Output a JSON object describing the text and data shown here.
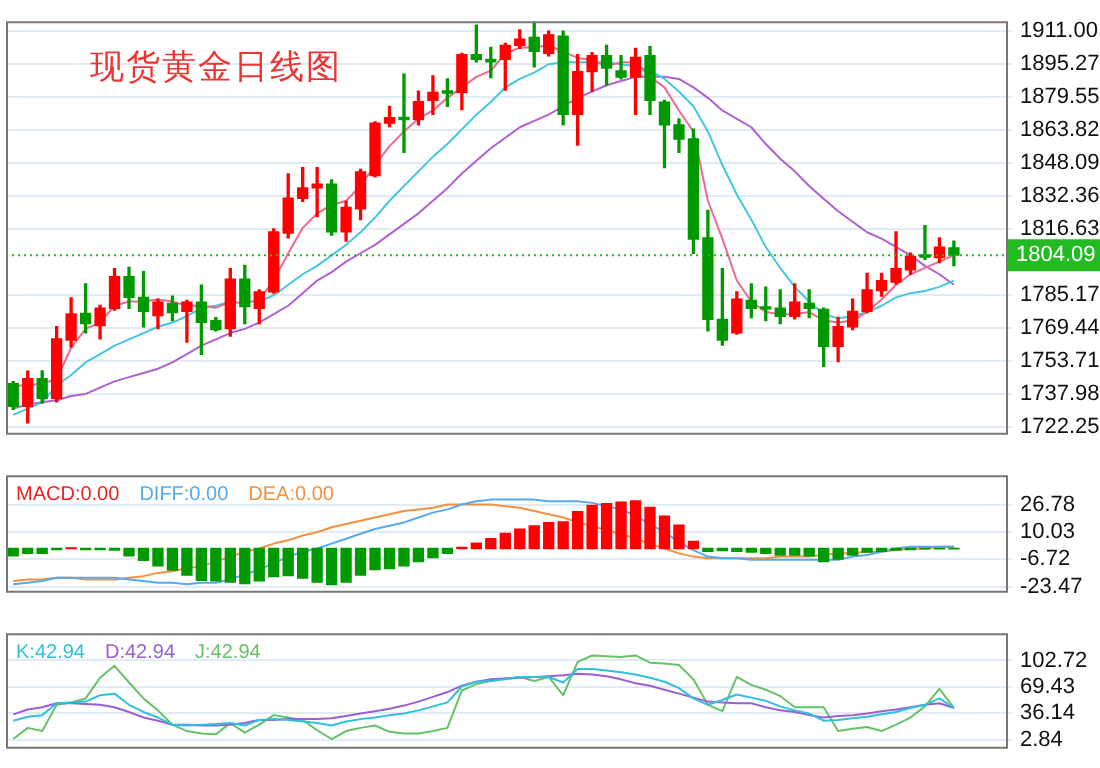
{
  "chart_data": [
    {
      "type": "candlestick",
      "title": "现货黄金日线图",
      "categories": [
        null,
        null,
        null,
        null,
        null,
        null,
        null,
        null,
        null,
        null,
        null,
        null,
        null,
        null,
        null,
        null,
        null,
        null,
        null,
        null,
        null,
        null,
        null,
        null,
        null,
        null,
        null,
        null,
        null,
        null,
        null,
        null,
        null,
        null,
        null,
        null,
        null,
        null,
        null,
        null,
        null,
        null,
        null,
        null,
        null,
        null,
        null,
        null,
        null,
        null,
        null,
        null,
        null,
        null,
        null,
        null,
        null,
        null,
        null,
        null,
        null,
        null,
        null,
        null,
        null,
        null
      ],
      "ohlc": [
        [
          1742.9,
          1743.8,
          1730.7,
          1732.1
        ],
        [
          1732.1,
          1748.8,
          1724.3,
          1745.3
        ],
        [
          1745.3,
          1749.0,
          1733.6,
          1735.9
        ],
        [
          1735.9,
          1770.0,
          1734.2,
          1764.2
        ],
        [
          1763.6,
          1783.7,
          1760.4,
          1776.1
        ],
        [
          1776.4,
          1790.4,
          1767.1,
          1771.5
        ],
        [
          1770.6,
          1780.2,
          1764.2,
          1778.8
        ],
        [
          1778.8,
          1797.7,
          1777.9,
          1793.9
        ],
        [
          1793.9,
          1798.3,
          1778.8,
          1784.0
        ],
        [
          1784.0,
          1796.2,
          1770.0,
          1777.3
        ],
        [
          1775.3,
          1783.1,
          1769.1,
          1781.7
        ],
        [
          1781.1,
          1784.6,
          1772.9,
          1776.7
        ],
        [
          1777.3,
          1782.5,
          1762.7,
          1781.7
        ],
        [
          1781.7,
          1789.8,
          1756.9,
          1772.1
        ],
        [
          1772.9,
          1774.3,
          1768.0,
          1768.6
        ],
        [
          1769.1,
          1797.7,
          1765.6,
          1792.7
        ],
        [
          1792.7,
          1799.2,
          1771.5,
          1779.6
        ],
        [
          1778.8,
          1787.5,
          1771.5,
          1786.6
        ],
        [
          1786.6,
          1816.6,
          1786.0,
          1815.2
        ],
        [
          1814.6,
          1842.8,
          1812.3,
          1831.2
        ],
        [
          1831.2,
          1845.8,
          1829.7,
          1836.1
        ],
        [
          1836.1,
          1845.8,
          1822.4,
          1837.9
        ],
        [
          1837.9,
          1839.9,
          1813.7,
          1815.2
        ],
        [
          1815.2,
          1829.7,
          1810.8,
          1826.8
        ],
        [
          1826.2,
          1844.9,
          1821.0,
          1843.7
        ],
        [
          1842.0,
          1867.6,
          1841.4,
          1867.0
        ],
        [
          1867.0,
          1874.9,
          1865.3,
          1869.6
        ],
        [
          1869.2,
          1890.3,
          1853.0,
          1868.7
        ],
        [
          1868.7,
          1882.2,
          1866.1,
          1877.2
        ],
        [
          1877.8,
          1889.4,
          1871.1,
          1881.6
        ],
        [
          1882.2,
          1888.0,
          1874.9,
          1881.3
        ],
        [
          1881.6,
          1900.2,
          1873.4,
          1899.6
        ],
        [
          1899.6,
          1913.6,
          1896.1,
          1897.3
        ],
        [
          1897.3,
          1903.0,
          1888.6,
          1896.1
        ],
        [
          1897.3,
          1904.9,
          1882.7,
          1904.0
        ],
        [
          1904.0,
          1911.3,
          1902.6,
          1906.9
        ],
        [
          1907.8,
          1915.0,
          1893.8,
          1901.1
        ],
        [
          1900.2,
          1910.7,
          1899.0,
          1909.0
        ],
        [
          1908.4,
          1910.7,
          1866.1,
          1871.1
        ],
        [
          1871.1,
          1899.6,
          1856.5,
          1891.5
        ],
        [
          1891.5,
          1900.5,
          1882.2,
          1899.1
        ],
        [
          1899.1,
          1904.0,
          1885.1,
          1893.2
        ],
        [
          1891.8,
          1899.1,
          1888.0,
          1888.9
        ],
        [
          1888.9,
          1902.6,
          1871.1,
          1898.2
        ],
        [
          1899.1,
          1903.4,
          1871.1,
          1877.8
        ],
        [
          1876.9,
          1877.8,
          1845.8,
          1866.1
        ],
        [
          1866.1,
          1869.0,
          1853.0,
          1859.4
        ],
        [
          1859.4,
          1864.1,
          1805.0,
          1811.7
        ],
        [
          1812.3,
          1825.4,
          1768.0,
          1773.5
        ],
        [
          1773.5,
          1797.7,
          1761.3,
          1763.6
        ],
        [
          1767.1,
          1786.6,
          1766.5,
          1783.1
        ],
        [
          1782.5,
          1790.4,
          1774.4,
          1778.8
        ],
        [
          1779.0,
          1788.9,
          1772.9,
          1778.5
        ],
        [
          1778.8,
          1787.5,
          1771.5,
          1775.0
        ],
        [
          1775.0,
          1790.4,
          1773.8,
          1781.7
        ],
        [
          1781.1,
          1787.5,
          1774.4,
          1778.8
        ],
        [
          1778.2,
          1778.8,
          1751.1,
          1760.7
        ],
        [
          1760.7,
          1774.4,
          1753.4,
          1770.0
        ],
        [
          1770.0,
          1783.1,
          1768.6,
          1777.3
        ],
        [
          1777.3,
          1795.4,
          1776.7,
          1787.5
        ],
        [
          1787.2,
          1795.4,
          1784.6,
          1791.9
        ],
        [
          1791.3,
          1815.2,
          1790.4,
          1797.7
        ],
        [
          1797.1,
          1805.0,
          1795.0,
          1803.5
        ],
        [
          1803.8,
          1818.1,
          1802.1,
          1803.2
        ],
        [
          1802.9,
          1812.3,
          1800.6,
          1807.9
        ],
        [
          1807.6,
          1810.8,
          1799.1,
          1804.09
        ]
      ],
      "colors": [
        "#009900",
        "#ff0000",
        "#009900",
        "#ff0000",
        "#ff0000",
        "#009900",
        "#ff0000",
        "#ff0000",
        "#009900",
        "#009900",
        "#ff0000",
        "#009900",
        "#ff0000",
        "#009900",
        "#009900",
        "#ff0000",
        "#009900",
        "#ff0000",
        "#ff0000",
        "#ff0000",
        "#ff0000",
        "#ff0000",
        "#009900",
        "#ff0000",
        "#ff0000",
        "#ff0000",
        "#ff0000",
        "#009900",
        "#ff0000",
        "#ff0000",
        "#009900",
        "#ff0000",
        "#009900",
        "#009900",
        "#ff0000",
        "#ff0000",
        "#009900",
        "#ff0000",
        "#009900",
        "#ff0000",
        "#ff0000",
        "#009900",
        "#009900",
        "#ff0000",
        "#009900",
        "#009900",
        "#009900",
        "#009900",
        "#009900",
        "#009900",
        "#ff0000",
        "#009900",
        "#009900",
        "#009900",
        "#ff0000",
        "#009900",
        "#009900",
        "#ff0000",
        "#ff0000",
        "#ff0000",
        "#ff0000",
        "#ff0000",
        "#ff0000",
        "#009900",
        "#ff0000",
        "#009900"
      ],
      "series": [
        {
          "type": "line",
          "color": "#f06890",
          "values": [
            1742,
            1742,
            1743,
            1745,
            1760,
            1769,
            1772,
            1780,
            1782,
            1782,
            1783,
            1782,
            1780,
            1780,
            1779,
            1782,
            1781,
            1783,
            1792,
            1805,
            1817,
            1824,
            1828,
            1830,
            1837,
            1847,
            1856,
            1863,
            1869,
            1873,
            1879,
            1884,
            1889,
            1892,
            1900,
            1903,
            1903,
            1904,
            1901,
            1898,
            1897,
            1894,
            1896,
            1896,
            1889,
            1884,
            1873,
            1863,
            1830,
            1812,
            1792,
            1782,
            1777,
            1776,
            1776,
            1777,
            1773,
            1772,
            1773,
            1777,
            1783,
            1790,
            1795,
            1798,
            1801,
            1804
          ]
        },
        {
          "type": "line",
          "color": "#40c8e0",
          "values": [
            1728,
            1731,
            1734,
            1742,
            1747,
            1753,
            1757,
            1761,
            1764,
            1767,
            1770,
            1772,
            1775,
            1779,
            1780,
            1782,
            null,
            1782,
            1785,
            1790,
            1795,
            1799,
            1804,
            1809,
            1815,
            1822,
            1830,
            1837,
            1844,
            1851,
            1857,
            1864,
            1871,
            1877,
            1884,
            1888,
            1891,
            1895,
            1896,
            1896,
            1896,
            1896,
            1895,
            1894,
            1892,
            1888,
            1882,
            1875,
            1863,
            1847,
            1833,
            1821,
            1808,
            1798,
            1789,
            1782,
            1776,
            1774,
            1775,
            1777,
            1780,
            1784,
            1786,
            1787,
            1789,
            1792
          ]
        },
        {
          "type": "line",
          "color": "#b060d0",
          "values": [
            1731,
            1733,
            1734,
            1735,
            1737,
            1738,
            1741,
            1744,
            1746,
            1748,
            1750,
            1753,
            1757,
            1761,
            1764,
            1767,
            1769,
            1772,
            1776,
            1780,
            1786,
            1792,
            1796,
            1801,
            1805,
            1809,
            1814,
            1819,
            1824,
            1830,
            1836,
            1843,
            1849,
            1855,
            1860,
            1865,
            1868,
            1871,
            1875,
            1879,
            1882,
            1885,
            1887,
            1889,
            1889,
            1889,
            1888,
            1884,
            1879,
            1873,
            1869,
            1865,
            1857,
            1850,
            1844,
            1837,
            1831,
            1825,
            1820,
            1815,
            1812,
            1808,
            1804,
            1799,
            1795,
            1790
          ]
        }
      ],
      "ylim": [
        1719.5,
        1915.5
      ],
      "yticks": [
        {
          "value": 1911,
          "label": "1911.00"
        },
        1895.27,
        1879.55,
        1863.82,
        1848.09,
        1832.36,
        1816.63,
        1785.17,
        1769.44,
        1753.71,
        1737.98,
        1722.25
      ],
      "ref_lines": [
        {
          "axis": "y",
          "value": 1804.09,
          "label": "1804.09",
          "color": "#22bb22",
          "line_style": "dotted"
        }
      ],
      "grid": "y",
      "tick_labels": "y"
    },
    {
      "type": "bar",
      "categories": [
        null,
        null,
        null,
        null,
        null,
        null,
        null,
        null,
        null,
        null,
        null,
        null,
        null,
        null,
        null,
        null,
        null,
        null,
        null,
        null,
        null,
        null,
        null,
        null,
        null,
        null,
        null,
        null,
        null,
        null,
        null,
        null,
        null,
        null,
        null,
        null,
        null,
        null,
        null,
        null,
        null,
        null,
        null,
        null,
        null,
        null,
        null,
        null,
        null,
        null,
        null,
        null,
        null,
        null,
        null,
        null,
        null,
        null,
        null,
        null,
        null,
        null,
        null,
        null,
        null,
        null
      ],
      "series": [
        {
          "name": "MACD:0.00",
          "type": "bar",
          "color": "#ee2222",
          "values": [
            -4.6,
            -3.0,
            -3.0,
            -0.7,
            0.3,
            -0.7,
            -0.7,
            -1.0,
            -4.6,
            -7.3,
            -10.6,
            -13.3,
            -16.3,
            -19.6,
            -19.9,
            -20.6,
            -21.6,
            -19.9,
            -17.3,
            -16.6,
            -18.2,
            -20.6,
            -22.2,
            -20.6,
            -16.3,
            -12.9,
            -12.3,
            -10.6,
            -8.0,
            -5.6,
            -3.0,
            0.7,
            3.3,
            6.0,
            9.3,
            11.9,
            13.9,
            15.9,
            16.3,
            22.6,
            26.5,
            27.5,
            28.5,
            29.2,
            25.2,
            19.9,
            14.3,
            4.3,
            -1.7,
            -1.3,
            -1.7,
            -2.3,
            -3.0,
            -4.0,
            -4.0,
            -4.6,
            -8.0,
            -6.6,
            -4.0,
            -2.3,
            -1.7,
            -1.0,
            -0.7,
            -0.3,
            -0.3,
            -0.3
          ],
          "colors": [
            "#009900",
            "#009900",
            "#009900",
            "#009900",
            "#ff0000",
            "#009900",
            "#009900",
            "#009900",
            "#009900",
            "#009900",
            "#009900",
            "#009900",
            "#009900",
            "#009900",
            "#009900",
            "#009900",
            "#009900",
            "#009900",
            "#009900",
            "#009900",
            "#009900",
            "#009900",
            "#009900",
            "#009900",
            "#009900",
            "#009900",
            "#009900",
            "#009900",
            "#009900",
            "#009900",
            "#009900",
            "#ff0000",
            "#ff0000",
            "#ff0000",
            "#ff0000",
            "#ff0000",
            "#ff0000",
            "#ff0000",
            "#ff0000",
            "#ff0000",
            "#ff0000",
            "#ff0000",
            "#ff0000",
            "#ff0000",
            "#ff0000",
            "#ff0000",
            "#ff0000",
            "#ff0000",
            "#009900",
            "#009900",
            "#009900",
            "#009900",
            "#009900",
            "#009900",
            "#009900",
            "#009900",
            "#009900",
            "#009900",
            "#009900",
            "#009900",
            "#009900",
            "#009900",
            "#009900",
            "#009900",
            "#009900",
            "#009900"
          ]
        },
        {
          "name": "DIFF:0.00",
          "type": "line",
          "color": "#55aaee",
          "values": [
            -22,
            -21,
            -20,
            -18,
            -18,
            -18,
            -18,
            -18,
            -19,
            -20,
            -21,
            -21,
            -22,
            -21,
            -21,
            -19,
            -16,
            -13,
            -9,
            -5,
            -2,
            0,
            3,
            6,
            9,
            12,
            14,
            16,
            19,
            22,
            24,
            27,
            29,
            30,
            30,
            30,
            30,
            29,
            29,
            29,
            28,
            26,
            24,
            20,
            15,
            10,
            4,
            -1,
            -5,
            -6,
            -6,
            -7,
            -7,
            -7,
            -7,
            -7,
            -7,
            -7,
            -5,
            -4,
            -2,
            0,
            1,
            1,
            1,
            1
          ]
        },
        {
          "name": "DEA:0.00",
          "type": "line",
          "color": "#f59040",
          "values": [
            -20,
            -19,
            -19,
            -18,
            -18,
            -19,
            -19,
            -19,
            -18,
            -17,
            -15,
            -14,
            -12,
            -11,
            -8,
            -5,
            -2,
            0,
            3,
            5,
            8,
            10,
            13,
            15,
            17,
            19,
            21,
            23,
            24,
            25,
            27,
            27,
            27,
            27,
            26,
            25,
            23,
            21,
            19,
            16,
            14,
            11,
            9,
            6,
            3,
            0,
            -3,
            -5,
            -6,
            -6,
            -6,
            -6,
            -6,
            -5,
            -5,
            -5,
            -4,
            -3,
            -3,
            -2,
            -2,
            -1,
            0,
            0,
            1,
            1
          ]
        }
      ],
      "ylim": [
        -26,
        45
      ],
      "yticks": [
        26.78,
        10.03,
        -6.72,
        -23.47
      ],
      "grid": "y",
      "legend": "top left",
      "tick_labels": "y"
    },
    {
      "type": "line",
      "categories": [
        null,
        null,
        null,
        null,
        null,
        null,
        null,
        null,
        null,
        null,
        null,
        null,
        null,
        null,
        null,
        null,
        null,
        null,
        null,
        null,
        null,
        null,
        null,
        null,
        null,
        null,
        null,
        null,
        null,
        null,
        null,
        null,
        null,
        null,
        null,
        null,
        null,
        null,
        null,
        null,
        null,
        null,
        null,
        null,
        null,
        null,
        null,
        null,
        null,
        null,
        null,
        null,
        null,
        null,
        null,
        null,
        null,
        null,
        null,
        null,
        null,
        null,
        null,
        null,
        null,
        null
      ],
      "series": [
        {
          "name": "K:42.94",
          "color": "#30c0dd",
          "values": [
            27,
            32,
            34,
            49,
            50,
            51,
            59,
            61,
            47,
            38,
            31,
            22,
            21,
            22,
            23,
            24,
            21,
            28,
            29,
            28,
            26,
            24,
            21,
            26,
            29,
            31,
            34,
            36,
            40,
            45,
            50,
            70,
            76,
            77,
            79,
            82,
            82,
            82,
            75,
            92,
            92,
            90,
            88,
            85,
            81,
            76,
            68,
            55,
            47,
            53,
            60,
            56,
            52,
            45,
            40,
            36,
            27,
            28,
            30,
            32,
            35,
            38,
            43,
            47,
            55,
            43
          ]
        },
        {
          "name": "D:42.94",
          "color": "#9b5fd0",
          "values": [
            35,
            41,
            44,
            49,
            49,
            48,
            47,
            44,
            38,
            31,
            27,
            22,
            22,
            21,
            21,
            22,
            24,
            28,
            28,
            29,
            29,
            29,
            30,
            33,
            36,
            39,
            42,
            46,
            51,
            57,
            63,
            71,
            76,
            79,
            80,
            81,
            82,
            83,
            84,
            86,
            85,
            83,
            79,
            74,
            71,
            66,
            61,
            56,
            51,
            50,
            49,
            49,
            44,
            40,
            38,
            34,
            31,
            33,
            34,
            36,
            39,
            41,
            44,
            47,
            49,
            43
          ]
        },
        {
          "name": "J:42.94",
          "color": "#66c266",
          "values": [
            4,
            18,
            14,
            47,
            50,
            55,
            81,
            96,
            75,
            55,
            40,
            22,
            14,
            11,
            10,
            24,
            12,
            22,
            34,
            31,
            28,
            15,
            4,
            14,
            18,
            21,
            13,
            11,
            11,
            14,
            18,
            65,
            73,
            77,
            80,
            82,
            77,
            82,
            59,
            101,
            109,
            108,
            107,
            109,
            100,
            99,
            97,
            79,
            47,
            39,
            82,
            72,
            66,
            58,
            44,
            44,
            44,
            14,
            17,
            19,
            14,
            22,
            31,
            45,
            67,
            43
          ]
        }
      ],
      "ylim": [
        -5.8,
        137
      ],
      "yticks": [
        102.72,
        69.43,
        36.14,
        2.84
      ],
      "grid": "y",
      "legend": "top left",
      "tick_labels": "y"
    }
  ]
}
